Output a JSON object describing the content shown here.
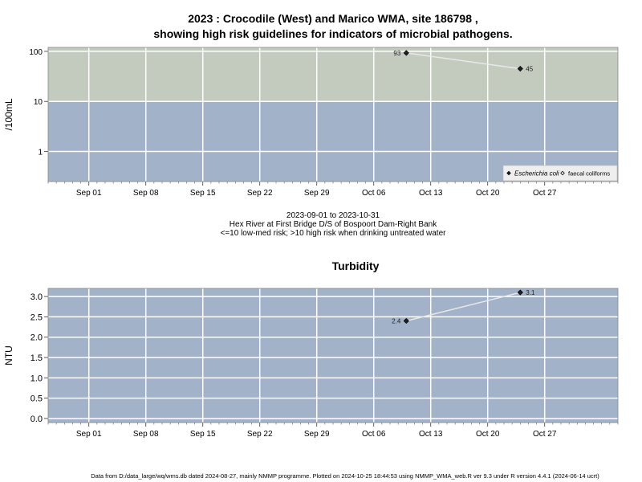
{
  "chart_data": [
    {
      "type": "scatter",
      "title": "2023 : Crocodile (West) and Marico WMA, site 186798 ,",
      "title_line2": "showing high risk guidelines for indicators of microbial pathogens.",
      "ylabel": "/100mL",
      "y_scale": "log",
      "ylim": [
        0.25,
        120
      ],
      "y_ticks": [
        "1",
        "10",
        "100"
      ],
      "bands": [
        {
          "from": 0.25,
          "to": 10,
          "color": "#a2b2c9",
          "meaning": "low-med risk"
        },
        {
          "from": 10,
          "to": 120,
          "color": "#c3cbbf",
          "meaning": "high risk"
        }
      ],
      "x_range": [
        "2023-08-27",
        "2023-11-05"
      ],
      "x_ticks": [
        "Sep 01",
        "Sep 08",
        "Sep 15",
        "Sep 22",
        "Sep 29",
        "Oct 06",
        "Oct 13",
        "Oct 20",
        "Oct 27"
      ],
      "series": [
        {
          "name": "Escherichia coli",
          "marker": "filled-diamond",
          "x": [
            "2023-10-10",
            "2023-10-24"
          ],
          "y": [
            93,
            45
          ],
          "labels": [
            "93",
            "45"
          ]
        }
      ],
      "legend": {
        "position": "bottom-right",
        "entries": [
          "Escherichia coli",
          "faecal coliforms"
        ]
      },
      "grid": true
    },
    {
      "type": "scatter",
      "title": "Turbidity",
      "ylabel": "NTU",
      "ylim": [
        -0.1,
        3.2
      ],
      "y_ticks": [
        "0.0",
        "0.5",
        "1.0",
        "1.5",
        "2.0",
        "2.5",
        "3.0"
      ],
      "background": "#a2b2c9",
      "x_range": [
        "2023-08-27",
        "2023-11-05"
      ],
      "x_ticks": [
        "Sep 01",
        "Sep 08",
        "Sep 15",
        "Sep 22",
        "Sep 29",
        "Oct 06",
        "Oct 13",
        "Oct 20",
        "Oct 27"
      ],
      "series": [
        {
          "marker": "filled-diamond",
          "x": [
            "2023-10-10",
            "2023-10-24"
          ],
          "y": [
            2.4,
            3.1
          ],
          "labels": [
            "2.4",
            "3.1"
          ]
        }
      ],
      "grid": true
    }
  ],
  "date_range": "2023-09-01 to 2023-10-31",
  "site_name": "Hex River at First Bridge D/S of Bospoort Dam-Right Bank",
  "risk_note": "<=10 low-med risk; >10 high risk when drinking untreated water",
  "footer": "Data from D:/data_large/wq/wms.db dated 2024-08-27, mainly NMMP programme. Plotted on 2024-10-25 18:44:53 using NMMP_WMA_web.R ver 9.3 under R version 4.4.1 (2024-06-14 ucrt)"
}
